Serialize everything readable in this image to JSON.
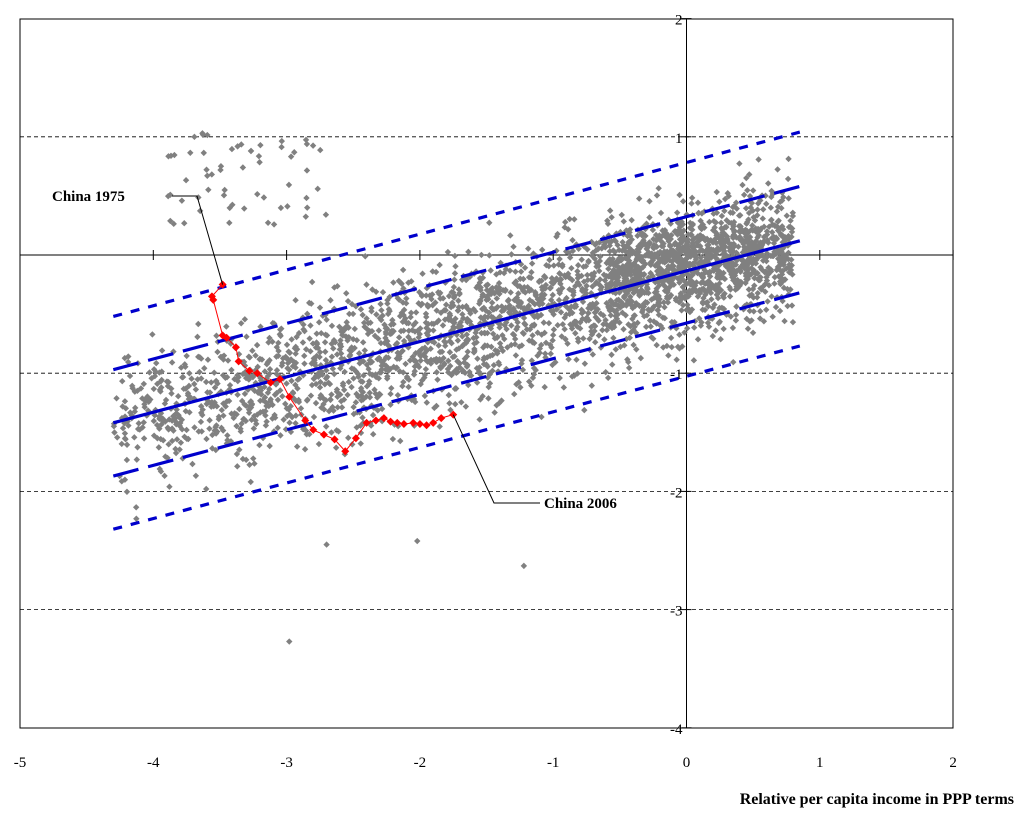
{
  "chart_data": {
    "type": "scatter",
    "title": "",
    "xlabel": "Relative per capita income in PPP terms",
    "ylabel": "",
    "xlim": [
      -5,
      2
    ],
    "ylim": [
      -4,
      2
    ],
    "x_ticks": [
      -5,
      -4,
      -3,
      -2,
      -1,
      0,
      1,
      2
    ],
    "y_ticks": [
      2,
      1,
      0,
      -1,
      -2,
      -3,
      -4
    ],
    "grid": "dashed horizontal at y = 1, -1, -2, -3",
    "scatter_cloud": {
      "name": "",
      "color": "#808080",
      "marker": "diamond",
      "x_range": [
        -4.3,
        0.8
      ],
      "y_range": [
        -3.3,
        1.05
      ],
      "notes": "several thousand country-year observations"
    },
    "lines": [
      {
        "style": "solid",
        "color": "#0000cc",
        "x": [
          -4.3,
          0.85
        ],
        "y": [
          -1.42,
          0.12
        ]
      },
      {
        "style": "long-dash",
        "color": "#0000cc",
        "x": [
          -4.3,
          0.85
        ],
        "y": [
          -0.97,
          0.58
        ]
      },
      {
        "style": "long-dash",
        "color": "#0000cc",
        "x": [
          -4.3,
          0.85
        ],
        "y": [
          -1.87,
          -0.32
        ]
      },
      {
        "style": "short-dash",
        "color": "#0000cc",
        "x": [
          -4.3,
          0.85
        ],
        "y": [
          -0.52,
          1.04
        ]
      },
      {
        "style": "short-dash",
        "color": "#0000cc",
        "x": [
          -4.3,
          0.85
        ],
        "y": [
          -2.32,
          -0.77
        ]
      }
    ],
    "china_series": {
      "color": "#ff0000",
      "x": [
        -3.48,
        -3.56,
        -3.55,
        -3.48,
        -3.45,
        -3.38,
        -3.36,
        -3.28,
        -3.22,
        -3.12,
        -3.05,
        -2.98,
        -2.86,
        -2.8,
        -2.72,
        -2.64,
        -2.56,
        -2.48,
        -2.4,
        -2.33,
        -2.27,
        -2.22,
        -2.17,
        -2.12,
        -2.05,
        -2.0,
        -1.95,
        -1.9,
        -1.84,
        -1.75
      ],
      "y": [
        -0.25,
        -0.35,
        -0.38,
        -0.68,
        -0.7,
        -0.78,
        -0.9,
        -0.98,
        -1.0,
        -1.08,
        -1.05,
        -1.2,
        -1.4,
        -1.48,
        -1.52,
        -1.56,
        -1.66,
        -1.55,
        -1.42,
        -1.4,
        -1.38,
        -1.41,
        -1.42,
        -1.43,
        -1.42,
        -1.43,
        -1.44,
        -1.42,
        -1.38,
        -1.35
      ]
    },
    "annotations": [
      {
        "text": "China 1975",
        "point": [
          -3.48,
          -0.25
        ]
      },
      {
        "text": "China 2006",
        "point": [
          -1.75,
          -1.35
        ]
      }
    ]
  }
}
